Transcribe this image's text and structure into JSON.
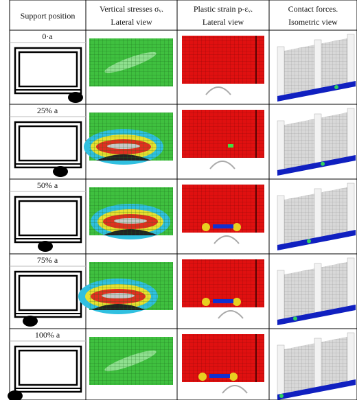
{
  "table": {
    "headers": [
      [
        "Support position"
      ],
      [
        "Vertical stresses σᵥ.",
        "Lateral view"
      ],
      [
        "Plastic strain p-εᵥ.",
        "Lateral view"
      ],
      [
        "Contact forces.",
        "Isometric  view"
      ]
    ],
    "rows": [
      "0·a",
      "25% a",
      "50% a",
      "75% a",
      "100% a"
    ]
  }
}
